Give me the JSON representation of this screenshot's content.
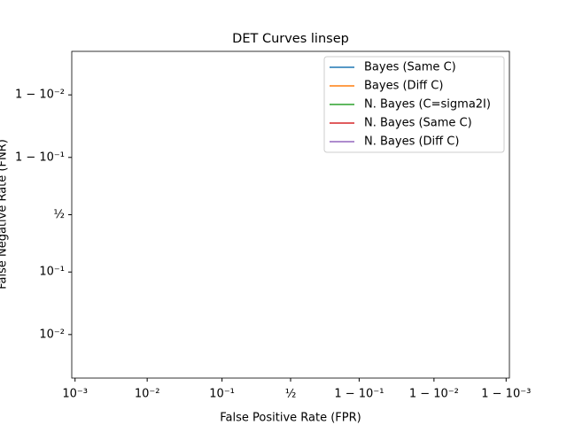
{
  "chart_data": {
    "type": "line",
    "title": "DET Curves linsep",
    "xlabel": "False Positive Rate (FPR)",
    "ylabel": "False Negative Rate (FNR)",
    "xscale": "logit",
    "yscale": "logit",
    "xlim": [
      0.0009,
      0.9991
    ],
    "ylim": [
      0.0019,
      0.9981
    ],
    "xticks": [
      {
        "value": 0.001,
        "label": "10⁻³"
      },
      {
        "value": 0.01,
        "label": "10⁻²"
      },
      {
        "value": 0.1,
        "label": "10⁻¹"
      },
      {
        "value": 0.5,
        "label": "½"
      },
      {
        "value": 0.9,
        "label": "1 − 10⁻¹"
      },
      {
        "value": 0.99,
        "label": "1 − 10⁻²"
      },
      {
        "value": 0.999,
        "label": "1 − 10⁻³"
      }
    ],
    "yticks": [
      {
        "value": 0.01,
        "label": "10⁻²"
      },
      {
        "value": 0.1,
        "label": "10⁻¹"
      },
      {
        "value": 0.5,
        "label": "½"
      },
      {
        "value": 0.9,
        "label": "1 − 10⁻¹"
      },
      {
        "value": 0.99,
        "label": "1 − 10⁻²"
      }
    ],
    "legend": "upper right",
    "series": [
      {
        "name": "Bayes (Same C)",
        "color": "#1f77b4",
        "x": [],
        "values": []
      },
      {
        "name": "Bayes (Diff C)",
        "color": "#ff7f0e",
        "x": [],
        "values": []
      },
      {
        "name": "N. Bayes (C=sigma2I)",
        "color": "#2ca02c",
        "x": [],
        "values": []
      },
      {
        "name": "N. Bayes (Same C)",
        "color": "#d62728",
        "x": [],
        "values": []
      },
      {
        "name": "N. Bayes (Diff C)",
        "color": "#9467bd",
        "x": [],
        "values": []
      }
    ]
  }
}
